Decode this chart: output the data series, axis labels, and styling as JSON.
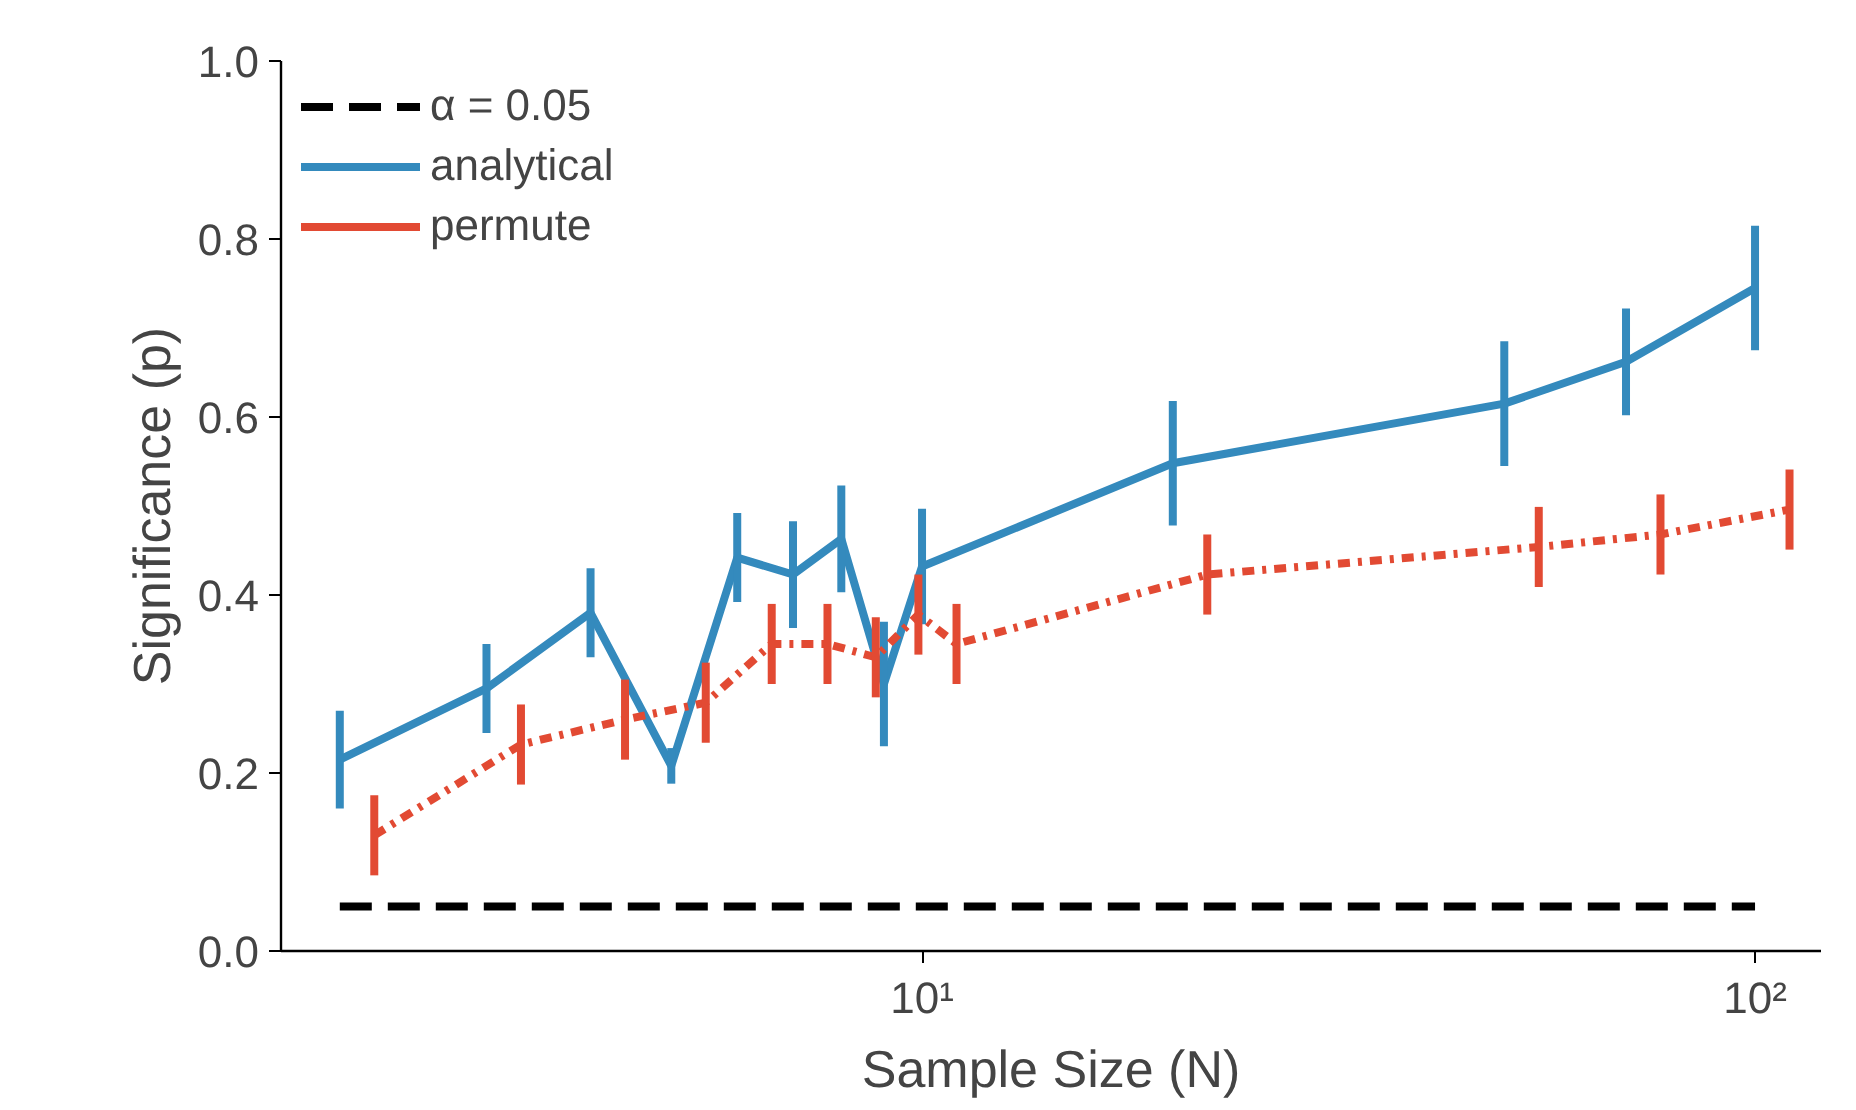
{
  "chart_data": {
    "type": "line",
    "xlabel": "Sample Size (N)",
    "ylabel": "Significance (p)",
    "log": "x",
    "xlim": [
      1.7,
      120
    ],
    "ylim": [
      0,
      1
    ],
    "xticks": [
      {
        "value": 10,
        "label": "10¹"
      },
      {
        "value": 100,
        "label": "10²"
      }
    ],
    "yticks": [
      {
        "value": 0,
        "label": "0.0"
      },
      {
        "value": 0.2,
        "label": "0.2"
      },
      {
        "value": 0.4,
        "label": "0.4"
      },
      {
        "value": 0.6,
        "label": "0.6"
      },
      {
        "value": 0.8,
        "label": "0.8"
      },
      {
        "value": 1,
        "label": "1.0"
      }
    ],
    "grid": false,
    "legend": "top left",
    "marker": "none",
    "series": [
      {
        "name": "α = 0.05",
        "color": "#000000",
        "line_style": "dashed",
        "x": [
          2,
          100
        ],
        "values": [
          0.05,
          0.05
        ]
      },
      {
        "name": "analytical",
        "color": "#348abd",
        "line_style": "solid",
        "x": [
          2,
          3,
          4,
          5,
          6,
          7,
          8,
          9,
          10,
          20,
          50,
          70,
          100
        ],
        "values": [
          0.215,
          0.295,
          0.38,
          0.208,
          0.442,
          0.423,
          0.463,
          0.3,
          0.432,
          0.548,
          0.615,
          0.662,
          0.745
        ],
        "errors": [
          0.055,
          0.05,
          0.05,
          0.02,
          0.05,
          0.06,
          0.06,
          0.07,
          0.065,
          0.07,
          0.07,
          0.06,
          0.07
        ]
      },
      {
        "name": "permute",
        "color": "#e24a33",
        "line_style": "dashdot",
        "x": [
          2.2,
          3.3,
          4.4,
          5.5,
          6.6,
          7.7,
          8.8,
          9.9,
          11,
          22,
          55,
          77,
          110
        ],
        "values": [
          0.13,
          0.232,
          0.26,
          0.279,
          0.345,
          0.345,
          0.33,
          0.378,
          0.345,
          0.423,
          0.454,
          0.468,
          0.496
        ],
        "errors": [
          0.045,
          0.045,
          0.045,
          0.045,
          0.045,
          0.045,
          0.045,
          0.045,
          0.045,
          0.045,
          0.045,
          0.045,
          0.045
        ]
      }
    ]
  }
}
